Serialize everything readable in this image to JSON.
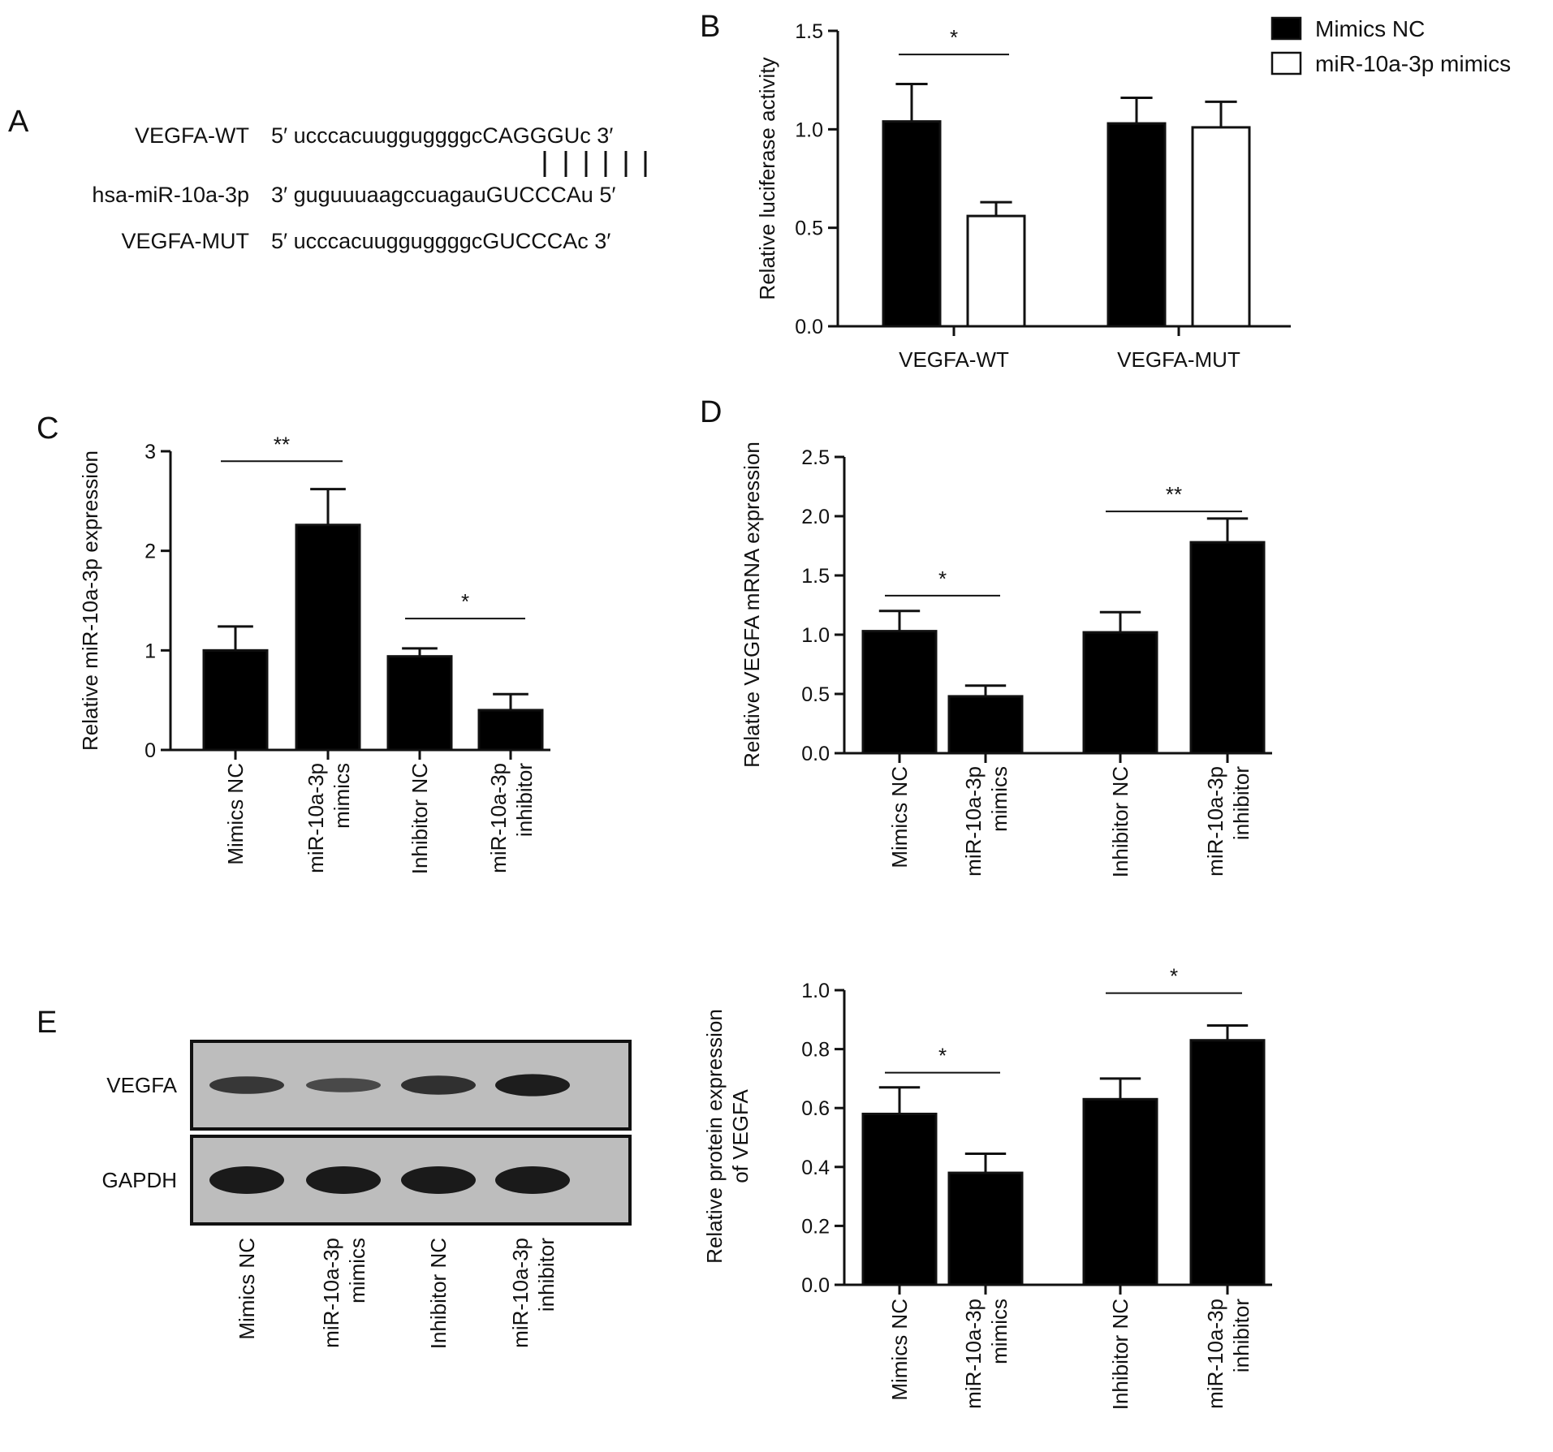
{
  "panels": {
    "A": {
      "letter": "A",
      "rows": [
        {
          "name": "VEGFA-WT",
          "seq": "5′ ucccacuugguggggcCAGGGUc 3′"
        },
        {
          "name": "hsa-miR-10a-3p",
          "seq": "3′ guguuuaagccuagauGUCCCAu 5′"
        },
        {
          "name": "VEGFA-MUT",
          "seq": "5′ ucccacuugguggggcGUCCCAc 3′"
        }
      ]
    },
    "B": {
      "letter": "B"
    },
    "C": {
      "letter": "C"
    },
    "D": {
      "letter": "D"
    },
    "E": {
      "letter": "E",
      "blot_rows": [
        "VEGFA",
        "GAPDH"
      ],
      "lanes": [
        "Mimics NC",
        "miR-10a-3p\nmimics",
        "Inhibitor NC",
        "miR-10a-3p\ninhibitor"
      ],
      "band_intensity": {
        "VEGFA": [
          0.6,
          0.35,
          0.72,
          0.95
        ],
        "GAPDH": [
          1.0,
          1.0,
          1.0,
          1.0
        ]
      }
    }
  },
  "colors": {
    "bar_fill": "#000000",
    "bar_open": "#ffffff",
    "axis": "#111111",
    "blot_bg": "#bdbdbd",
    "band": "#1a1a1a"
  },
  "chart_data": [
    {
      "id": "B",
      "type": "bar",
      "categories": [
        "VEGFA-WT",
        "VEGFA-MUT"
      ],
      "series": [
        {
          "name": "Mimics NC",
          "values": [
            1.04,
            1.03
          ],
          "errors": [
            0.19,
            0.13
          ],
          "color": "#000000"
        },
        {
          "name": "miR-10a-3p mimics",
          "values": [
            0.56,
            1.01
          ],
          "errors": [
            0.07,
            0.13
          ],
          "color": "#ffffff"
        }
      ],
      "ylabel": "Relative luciferase activity",
      "ylim": [
        0,
        1.5
      ],
      "yticks": [
        "0.0",
        "0.5",
        "1.0",
        "1.5"
      ],
      "legend": "top-right",
      "significance": [
        {
          "category": 0,
          "label": "*",
          "y": 1.38
        }
      ]
    },
    {
      "id": "C",
      "type": "bar",
      "categories": [
        "Mimics NC",
        "miR-10a-3p\nmimics",
        "Inhibitor NC",
        "miR-10a-3p\ninhibitor"
      ],
      "values": [
        1.0,
        2.26,
        0.94,
        0.4
      ],
      "errors": [
        0.24,
        0.36,
        0.08,
        0.16
      ],
      "ylabel": "Relative miR-10a-3p expression",
      "ylim": [
        0,
        3
      ],
      "yticks": [
        "0",
        "1",
        "2",
        "3"
      ],
      "significance": [
        {
          "from": 0,
          "to": 1,
          "label": "**",
          "y": 2.9
        },
        {
          "from": 2,
          "to": 3,
          "label": "*",
          "y": 1.32
        }
      ]
    },
    {
      "id": "D",
      "type": "bar",
      "categories": [
        "Mimics NC",
        "miR-10a-3p\nmimics",
        "Inhibitor NC",
        "miR-10a-3p\ninhibitor"
      ],
      "values": [
        1.03,
        0.48,
        1.02,
        1.78
      ],
      "errors": [
        0.17,
        0.09,
        0.17,
        0.2
      ],
      "ylabel": "Relative VEGFA mRNA expression",
      "ylim": [
        0,
        2.5
      ],
      "yticks": [
        "0.0",
        "0.5",
        "1.0",
        "1.5",
        "2.0",
        "2.5"
      ],
      "significance": [
        {
          "from": 0,
          "to": 1,
          "label": "*",
          "y": 1.33
        },
        {
          "from": 2,
          "to": 3,
          "label": "**",
          "y": 2.04
        }
      ]
    },
    {
      "id": "E",
      "type": "bar",
      "categories": [
        "Mimics NC",
        "miR-10a-3p\nmimics",
        "Inhibitor NC",
        "miR-10a-3p\ninhibitor"
      ],
      "values": [
        0.58,
        0.38,
        0.63,
        0.83
      ],
      "errors": [
        0.09,
        0.065,
        0.07,
        0.05
      ],
      "ylabel": "Relative protein expression\nof VEGFA",
      "ylim": [
        0,
        1.0
      ],
      "yticks": [
        "0.0",
        "0.2",
        "0.4",
        "0.6",
        "0.8",
        "1.0"
      ],
      "significance": [
        {
          "from": 0,
          "to": 1,
          "label": "*",
          "y": 0.72
        },
        {
          "from": 2,
          "to": 3,
          "label": "*",
          "y": 0.99
        }
      ]
    }
  ]
}
